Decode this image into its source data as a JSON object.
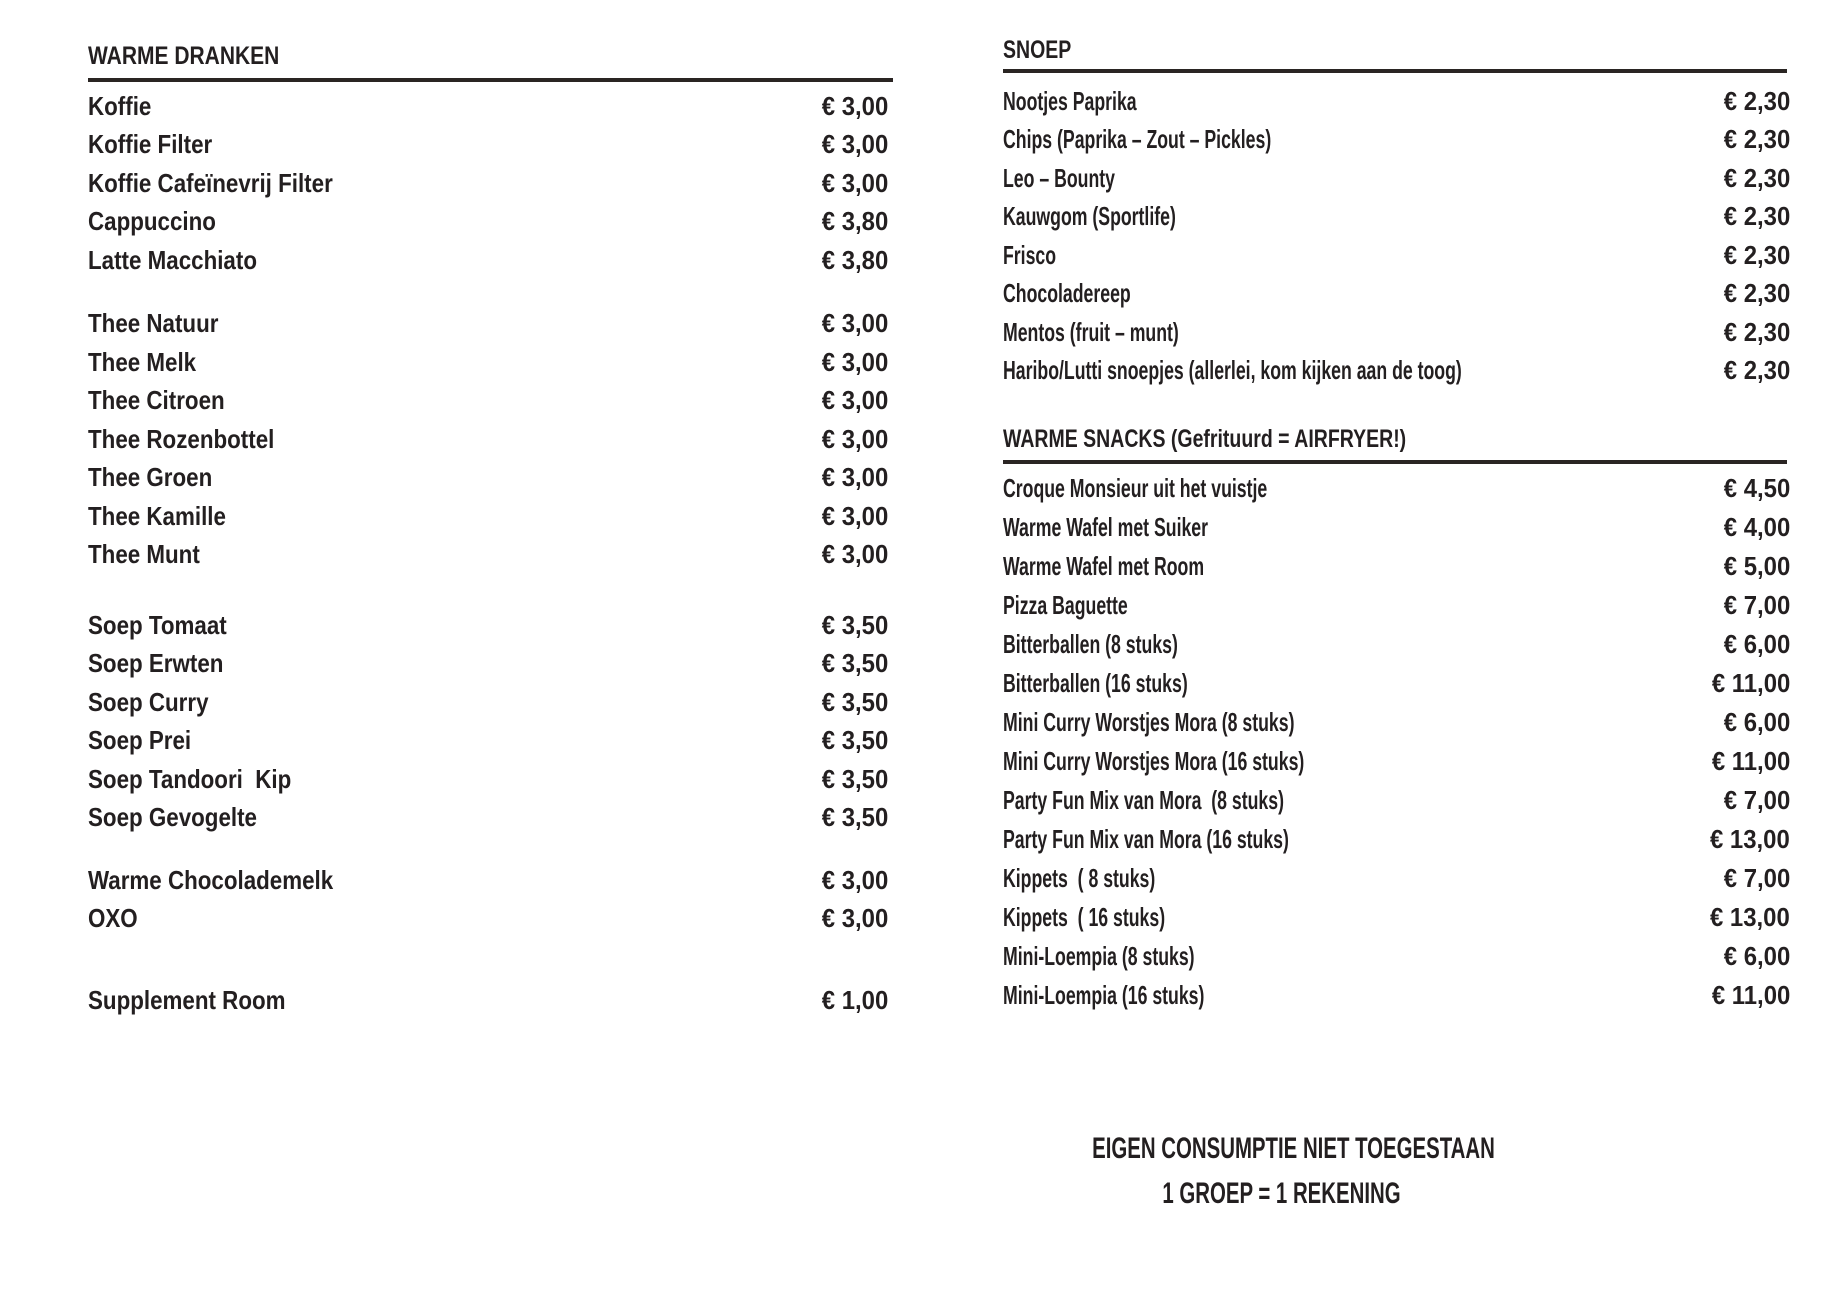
{
  "page": {
    "background_color": "#ffffff",
    "text_color": "#231f20",
    "rule_color": "#2a2523"
  },
  "left_column": {
    "sections": [
      {
        "title": "WARME DRANKEN",
        "groups": [
          {
            "items": [
              {
                "label": "Koffie",
                "price": "€ 3,00"
              },
              {
                "label": "Koffie Filter",
                "price": "€ 3,00"
              },
              {
                "label": "Koffie Cafeïnevrij Filter",
                "price": "€ 3,00"
              },
              {
                "label": "Cappuccino",
                "price": "€ 3,80"
              },
              {
                "label": "Latte Macchiato",
                "price": "€ 3,80"
              }
            ]
          },
          {
            "items": [
              {
                "label": "Thee Natuur",
                "price": "€ 3,00"
              },
              {
                "label": "Thee Melk",
                "price": "€ 3,00"
              },
              {
                "label": "Thee Citroen",
                "price": "€ 3,00"
              },
              {
                "label": "Thee Rozenbottel",
                "price": "€ 3,00"
              },
              {
                "label": "Thee Groen",
                "price": "€ 3,00"
              },
              {
                "label": "Thee Kamille",
                "price": "€ 3,00"
              },
              {
                "label": "Thee Munt",
                "price": "€ 3,00"
              }
            ]
          },
          {
            "items": [
              {
                "label": "Soep Tomaat",
                "price": "€ 3,50"
              },
              {
                "label": "Soep Erwten",
                "price": "€ 3,50"
              },
              {
                "label": "Soep Curry",
                "price": "€ 3,50"
              },
              {
                "label": "Soep Prei",
                "price": "€ 3,50"
              },
              {
                "label": "Soep Tandoori  Kip",
                "price": "€ 3,50"
              },
              {
                "label": "Soep Gevogelte",
                "price": "€ 3,50"
              }
            ]
          },
          {
            "items": [
              {
                "label": "Warme Chocolademelk",
                "price": "€ 3,00"
              },
              {
                "label": "OXO",
                "price": "€ 3,00"
              }
            ]
          },
          {
            "items": [
              {
                "label": "Supplement Room",
                "price": "€ 1,00"
              }
            ]
          }
        ]
      }
    ]
  },
  "right_column": {
    "sections": [
      {
        "title": "SNOEP",
        "groups": [
          {
            "items": [
              {
                "label": "Nootjes Paprika",
                "price": "€ 2,30"
              },
              {
                "label": "Chips (Paprika – Zout – Pickles)",
                "price": "€ 2,30"
              },
              {
                "label": "Leo – Bounty",
                "price": "€ 2,30"
              },
              {
                "label": "Kauwgom (Sportlife)",
                "price": "€ 2,30"
              },
              {
                "label": "Frisco",
                "price": "€ 2,30"
              },
              {
                "label": "Chocoladereep",
                "price": "€ 2,30"
              },
              {
                "label": "Mentos (fruit – munt)",
                "price": "€ 2,30"
              },
              {
                "label": "Haribo/Lutti snoepjes (allerlei, kom kijken aan de toog)",
                "price": "€ 2,30"
              }
            ]
          }
        ]
      },
      {
        "title": "WARME SNACKS (Gefrituurd = AIRFRYER!)",
        "groups": [
          {
            "items": [
              {
                "label": "Croque Monsieur uit het vuistje",
                "price": "€ 4,50"
              },
              {
                "label": "Warme Wafel met Suiker",
                "price": "€ 4,00"
              },
              {
                "label": "Warme Wafel met Room",
                "price": "€ 5,00"
              },
              {
                "label": "Pizza Baguette",
                "price": "€ 7,00"
              },
              {
                "label": "Bitterballen (8 stuks)",
                "price": "€ 6,00"
              },
              {
                "label": "Bitterballen (16 stuks)",
                "price": "€ 11,00"
              },
              {
                "label": "Mini Curry Worstjes Mora (8 stuks)",
                "price": "€ 6,00"
              },
              {
                "label": "Mini Curry Worstjes Mora (16 stuks)",
                "price": "€ 11,00"
              },
              {
                "label": "Party Fun Mix van Mora  (8 stuks)",
                "price": "€ 7,00"
              },
              {
                "label": "Party Fun Mix van Mora (16 stuks)",
                "price": "€ 13,00"
              },
              {
                "label": "Kippets  ( 8 stuks)",
                "price": "€ 7,00"
              },
              {
                "label": "Kippets  ( 16 stuks)",
                "price": "€ 13,00"
              },
              {
                "label": "Mini-Loempia (8 stuks)",
                "price": "€ 6,00"
              },
              {
                "label": "Mini-Loempia (16 stuks)",
                "price": "€ 11,00"
              }
            ]
          }
        ]
      }
    ],
    "notice": {
      "line1": "EIGEN CONSUMPTIE NIET TOEGESTAAN",
      "line2": "1 GROEP = 1 REKENING"
    }
  }
}
